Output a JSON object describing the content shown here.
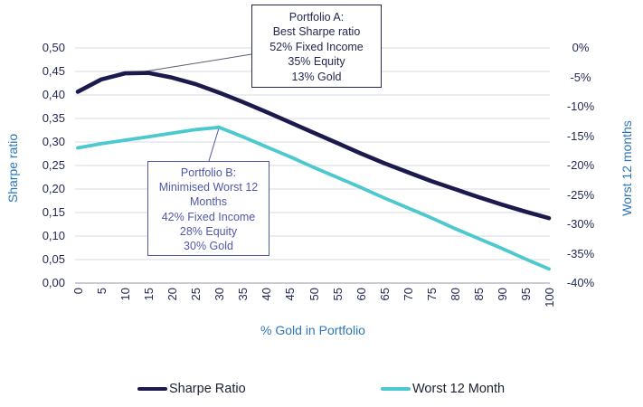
{
  "chart_data": {
    "type": "line",
    "title": "",
    "x": [
      0,
      5,
      10,
      15,
      20,
      25,
      30,
      35,
      40,
      45,
      50,
      55,
      60,
      65,
      70,
      75,
      80,
      85,
      90,
      95,
      100
    ],
    "x_axis": {
      "label": "% Gold in Portfolio",
      "min": 0,
      "max": 100,
      "tick_labels": [
        "0",
        "5",
        "10",
        "15",
        "20",
        "25",
        "30",
        "35",
        "40",
        "45",
        "50",
        "55",
        "60",
        "65",
        "70",
        "75",
        "80",
        "85",
        "90",
        "95",
        "100"
      ]
    },
    "y_axis_left": {
      "label": "Sharpe ratio",
      "min": 0,
      "max": 0.5,
      "tick_labels_top_to_bottom": [
        "0,50",
        "0,45",
        "0,40",
        "0,35",
        "0,30",
        "0,25",
        "0,20",
        "0,15",
        "0,10",
        "0,05",
        "0,00"
      ]
    },
    "y_axis_right": {
      "label": "Worst 12 months",
      "min": -40,
      "max": 0,
      "tick_labels_top_to_bottom": [
        "0%",
        "-5%",
        "-10%",
        "-15%",
        "-20%",
        "-25%",
        "-30%",
        "-35%",
        "-40%"
      ]
    },
    "grid": true,
    "legend_position": "bottom",
    "series": [
      {
        "name": "Sharpe Ratio",
        "axis": "left",
        "color": "#1b1a4d",
        "values": [
          0.407,
          0.433,
          0.446,
          0.447,
          0.437,
          0.423,
          0.405,
          0.385,
          0.364,
          0.342,
          0.32,
          0.298,
          0.276,
          0.255,
          0.236,
          0.217,
          0.2,
          0.183,
          0.167,
          0.152,
          0.138
        ]
      },
      {
        "name": "Worst 12 Month",
        "axis": "right",
        "color": "#4cc8cf",
        "values": [
          -17.0,
          -16.3,
          -15.7,
          -15.1,
          -14.5,
          -13.9,
          -13.5,
          -15.1,
          -16.8,
          -18.5,
          -20.3,
          -22.0,
          -23.7,
          -25.5,
          -27.2,
          -28.9,
          -30.7,
          -32.4,
          -34.1,
          -35.9,
          -37.6
        ]
      }
    ]
  },
  "annotations": {
    "portfolio_a": {
      "lines": [
        "Portfolio A:",
        "Best Sharpe ratio",
        "52% Fixed Income",
        "35% Equity",
        "13% Gold"
      ],
      "color": "#232850"
    },
    "portfolio_b": {
      "lines": [
        "Portfolio B:",
        "Minimised Worst 12 Months",
        "42% Fixed Income",
        "28% Equity",
        "30% Gold"
      ],
      "color": "#5058a8"
    }
  },
  "legend": {
    "items": [
      {
        "label": "Sharpe Ratio",
        "color": "#1b1a4d"
      },
      {
        "label": "Worst 12 Month",
        "color": "#4cc8cf"
      }
    ]
  },
  "colors": {
    "axis_title": "#2e75b6",
    "tick_text": "#242a56",
    "gridline": "#d9dbe1",
    "axis_line": "#a8acb8",
    "leader_a": "#5a5f6e",
    "leader_b": "#5058a8"
  }
}
